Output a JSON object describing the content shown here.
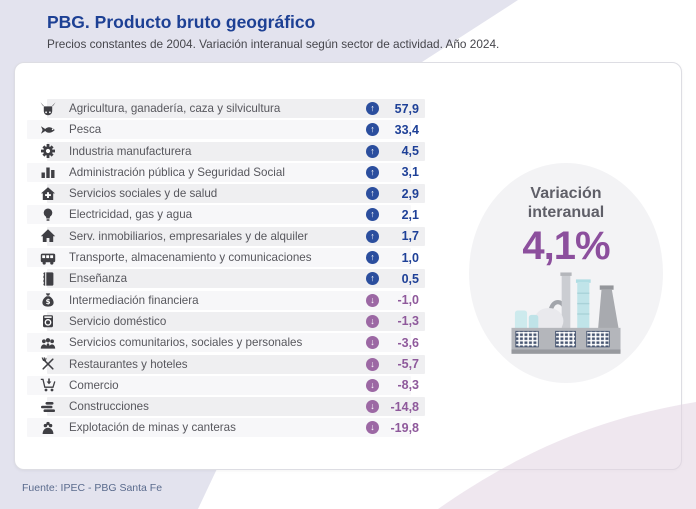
{
  "header": {
    "title": "PBG. Producto bruto geográfico",
    "subtitle": "Precios constantes de 2004. Variación interanual según sector de actividad. Año 2024."
  },
  "footer": {
    "source": "Fuente: IPEC - PBG Santa Fe"
  },
  "highlight": {
    "label_line1": "Variación",
    "label_line2": "interanual",
    "value": "4,1%"
  },
  "colors": {
    "title_blue": "#1d4094",
    "positive_value": "#1e4097",
    "negative_value": "#8e599b",
    "up_badge": "#2b4e9e",
    "down_badge": "#9c68a4",
    "highlight_purple": "#8c4f9d",
    "stripe_dark": "#efeff1",
    "stripe_light": "#f7f7f9",
    "bg_lavender": "#e3e3ee",
    "bg_pink": "#e2d3e2"
  },
  "sectors": [
    {
      "icon": "cow-icon",
      "label": "Agricultura, ganadería, caza y silvicultura",
      "value": "57,9",
      "direction": "up"
    },
    {
      "icon": "fish-icon",
      "label": "Pesca",
      "value": "33,4",
      "direction": "up"
    },
    {
      "icon": "gear-icon",
      "label": "Industria manufacturera",
      "value": "4,5",
      "direction": "up"
    },
    {
      "icon": "bar-chart-icon",
      "label": "Administración pública y Seguridad Social",
      "value": "3,1",
      "direction": "up"
    },
    {
      "icon": "health-house-icon",
      "label": "Servicios sociales y de salud",
      "value": "2,9",
      "direction": "up"
    },
    {
      "icon": "bulb-icon",
      "label": "Electricidad, gas y agua",
      "value": "2,1",
      "direction": "up"
    },
    {
      "icon": "house-icon",
      "label": "Serv. inmobiliarios, empresariales y de alquiler",
      "value": "1,7",
      "direction": "up"
    },
    {
      "icon": "bus-icon",
      "label": "Transporte, almacenamiento y comunicaciones",
      "value": "1,0",
      "direction": "up"
    },
    {
      "icon": "book-icon",
      "label": "Enseñanza",
      "value": "0,5",
      "direction": "up"
    },
    {
      "icon": "money-bag-icon",
      "label": "Intermediación financiera",
      "value": "-1,0",
      "direction": "down"
    },
    {
      "icon": "appliance-icon",
      "label": "Servicio doméstico",
      "value": "-1,3",
      "direction": "down"
    },
    {
      "icon": "people-icon",
      "label": "Servicios comunitarios, sociales y personales",
      "value": "-3,6",
      "direction": "down"
    },
    {
      "icon": "cutlery-icon",
      "label": "Restaurantes y hoteles",
      "value": "-5,7",
      "direction": "down"
    },
    {
      "icon": "cart-icon",
      "label": "Comercio",
      "value": "-8,3",
      "direction": "down"
    },
    {
      "icon": "construction-icon",
      "label": "Construcciones",
      "value": "-14,8",
      "direction": "down"
    },
    {
      "icon": "mining-icon",
      "label": "Explotación de minas y canteras",
      "value": "-19,8",
      "direction": "down"
    }
  ],
  "chart_data": {
    "type": "bar",
    "title": "PBG. Producto bruto geográfico",
    "subtitle": "Precios constantes de 2004. Variación interanual según sector de actividad. Año 2024.",
    "ylabel": "Variación interanual (%)",
    "categories": [
      "Agricultura, ganadería, caza y silvicultura",
      "Pesca",
      "Industria manufacturera",
      "Administración pública y Seguridad Social",
      "Servicios sociales y de salud",
      "Electricidad, gas y agua",
      "Serv. inmobiliarios, empresariales y de alquiler",
      "Transporte, almacenamiento y comunicaciones",
      "Enseñanza",
      "Intermediación financiera",
      "Servicio doméstico",
      "Servicios comunitarios, sociales y personales",
      "Restaurantes y hoteles",
      "Comercio",
      "Construcciones",
      "Explotación de minas y canteras"
    ],
    "values": [
      57.9,
      33.4,
      4.5,
      3.1,
      2.9,
      2.1,
      1.7,
      1.0,
      0.5,
      -1.0,
      -1.3,
      -3.6,
      -5.7,
      -8.3,
      -14.8,
      -19.8
    ],
    "annotations": [
      "Variación interanual 4,1%"
    ],
    "source": "Fuente: IPEC - PBG Santa Fe"
  }
}
